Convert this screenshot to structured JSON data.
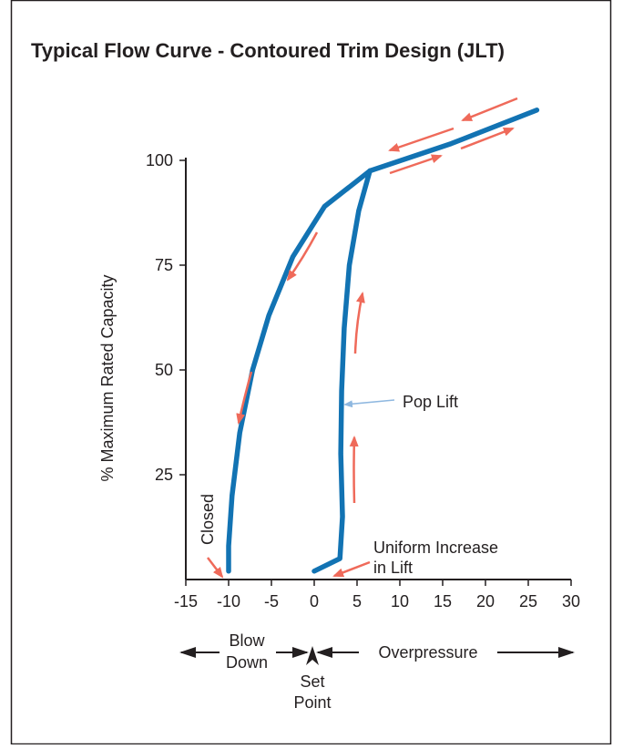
{
  "chart_data": {
    "type": "line",
    "title": "Typical Flow Curve - Contoured Trim Design (JLT)",
    "xlabel": "",
    "ylabel": "% Maximum Rated Capacity",
    "xlim": [
      -15,
      30
    ],
    "ylim": [
      0,
      110
    ],
    "x_ticks": [
      -15,
      -10,
      -5,
      0,
      5,
      10,
      15,
      20,
      25,
      30
    ],
    "x_tick_labels": [
      "-15",
      "-10",
      "-5",
      "0",
      "5",
      "10",
      "15",
      "20",
      "25",
      "30"
    ],
    "y_ticks": [
      25,
      50,
      75,
      100
    ],
    "y_tick_labels": [
      "25",
      "50",
      "75",
      "100"
    ],
    "grid": false,
    "line_color": "#1273b3",
    "arrow_color": "#ef6a5a",
    "series": [
      {
        "values": [
          [
            0,
            2
          ],
          [
            3,
            5
          ],
          [
            3.3,
            15
          ],
          [
            3.1,
            30
          ],
          [
            3.2,
            45
          ],
          [
            3.5,
            60
          ],
          [
            4.1,
            75
          ],
          [
            5.2,
            88
          ],
          [
            6.5,
            97.5
          ]
        ]
      },
      {
        "values": [
          [
            -10,
            2
          ],
          [
            -10,
            8
          ],
          [
            -9.6,
            20
          ],
          [
            -8.7,
            35
          ],
          [
            -7.2,
            50
          ],
          [
            -5.3,
            63
          ],
          [
            -2.5,
            77
          ],
          [
            1.2,
            89
          ],
          [
            6.5,
            97.5
          ]
        ]
      },
      {
        "values": [
          [
            6.5,
            97.5
          ],
          [
            16,
            104
          ],
          [
            26,
            112
          ]
        ]
      }
    ],
    "annotations": {
      "closed": "Closed",
      "pop_lift": "Pop Lift",
      "uniform_line1": "Uniform Increase",
      "uniform_line2": "in Lift",
      "blow_line1": "Blow",
      "blow_line2": "Down",
      "set_line1": "Set",
      "set_line2": "Point",
      "overpressure": "Overpressure"
    }
  }
}
